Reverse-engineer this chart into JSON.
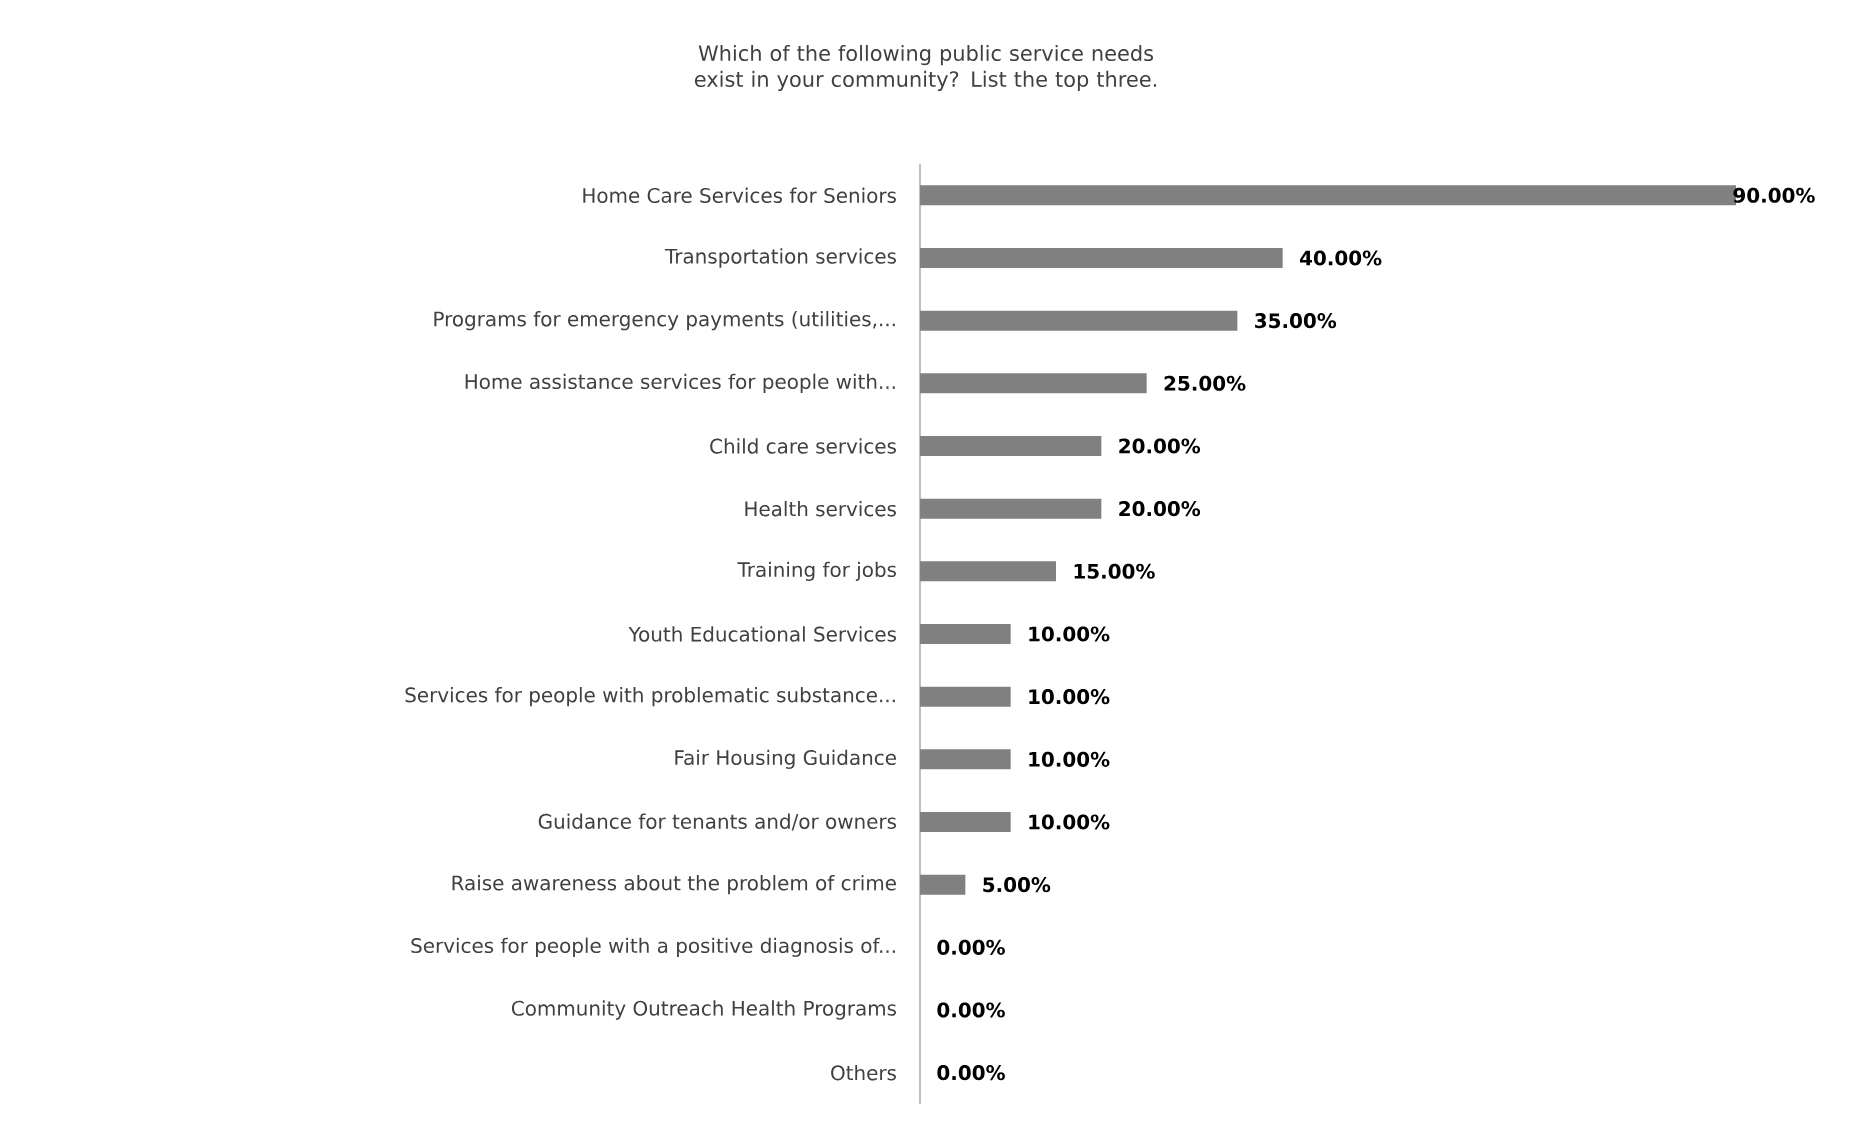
{
  "chart_data": {
    "type": "bar",
    "orientation": "horizontal",
    "title": "Which of the following public service needs exist in your community? List the top three.",
    "categories": [
      "Home Care Services for Seniors",
      "Transportation services",
      "Programs for emergency payments (utilities,...",
      "Home assistance services for people with...",
      "Child care services",
      "Health services",
      "Training for jobs",
      "Youth Educational Services",
      "Services for people with problematic substance...",
      "Fair Housing Guidance",
      "Guidance for tenants and/or owners",
      "Raise awareness about the problem of crime",
      "Services for people with a positive diagnosis of...",
      "Community Outreach Health Programs",
      "Others"
    ],
    "values": [
      90,
      40,
      35,
      25,
      20,
      20,
      15,
      10,
      10,
      10,
      10,
      5,
      0,
      0,
      0
    ],
    "value_labels": [
      "90.00%",
      "40.00%",
      "35.00%",
      "25.00%",
      "20.00%",
      "20.00%",
      "15.00%",
      "10.00%",
      "10.00%",
      "10.00%",
      "10.00%",
      "5.00%",
      "0.00%",
      "0.00%",
      "0.00%"
    ],
    "color": "#808080",
    "xlim": [
      0,
      90
    ]
  }
}
